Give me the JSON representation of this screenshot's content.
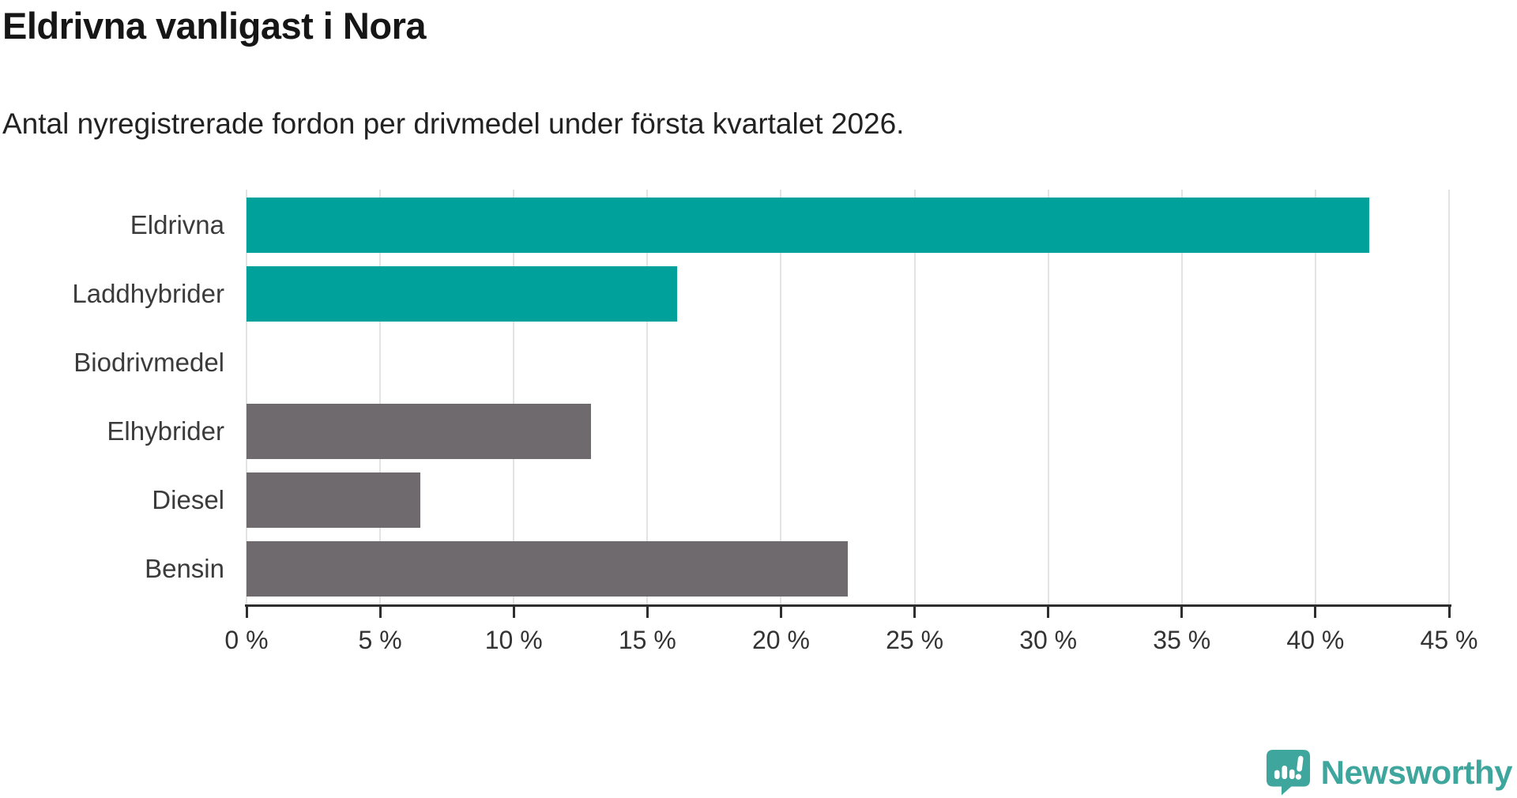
{
  "header": {
    "title": "Eldrivna vanligast i Nora",
    "subtitle": "Antal nyregistrerade fordon per drivmedel under första kvartalet 2026."
  },
  "chart_data": {
    "type": "bar",
    "orientation": "horizontal",
    "title": "Eldrivna vanligast i Nora",
    "subtitle": "Antal nyregistrerade fordon per drivmedel under första kvartalet 2026.",
    "categories": [
      "Eldrivna",
      "Laddhybrider",
      "Biodrivmedel",
      "Elhybrider",
      "Diesel",
      "Bensin"
    ],
    "values": [
      42,
      16.1,
      0,
      12.9,
      6.5,
      22.5
    ],
    "bar_colors": [
      "#00a09b",
      "#00a09b",
      "#6e6a6e",
      "#6e6a6e",
      "#6e6a6e",
      "#6e6a6e"
    ],
    "xlabel": "",
    "ylabel": "",
    "xlim": [
      0,
      45
    ],
    "x_ticks": [
      0,
      5,
      10,
      15,
      20,
      25,
      30,
      35,
      40,
      45
    ],
    "x_tick_suffix": " %",
    "grid": true,
    "legend": "none"
  },
  "colors": {
    "accent_teal": "#00a09b",
    "bar_gray": "#6e6a6e",
    "gridline": "#e3e3e3",
    "axis": "#2e2e2e",
    "title_text": "#161616",
    "label_text": "#3b3b3b",
    "logo_teal": "#3fa69d"
  },
  "logo": {
    "text": "Newsworthy",
    "icon": "newsworthy-speech-bubble-chart-icon"
  }
}
